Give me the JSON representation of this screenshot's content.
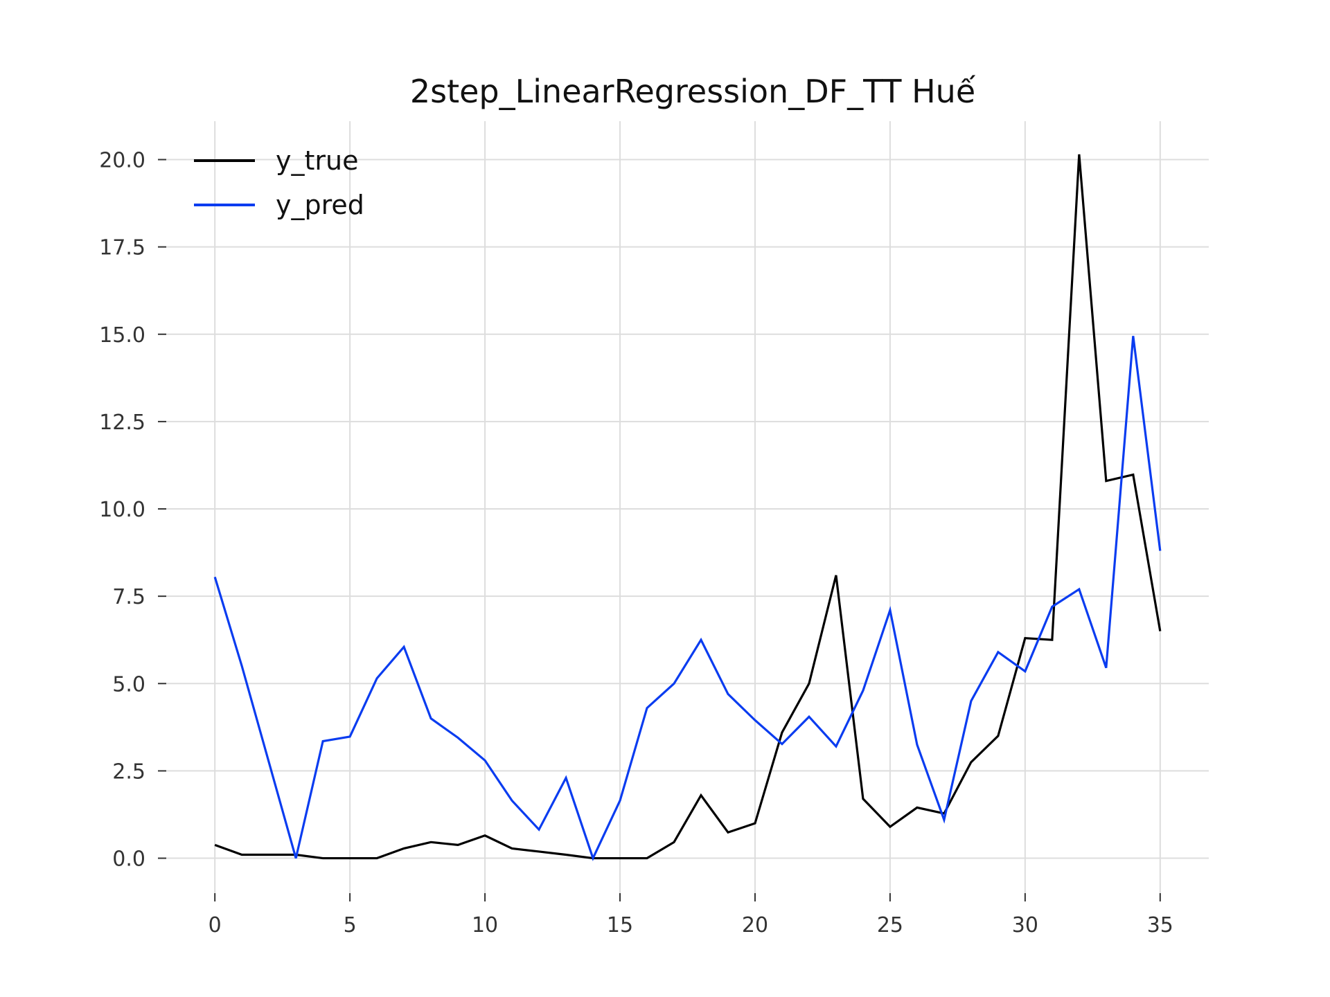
{
  "chart_data": {
    "type": "line",
    "title": "2step_LinearRegression_DF_TT Huế",
    "xlabel": "",
    "ylabel": "",
    "xlim": [
      -1.8,
      36.8
    ],
    "ylim": [
      -1.0,
      21.1
    ],
    "xticks": [
      0,
      5,
      10,
      15,
      20,
      25,
      30,
      35
    ],
    "xtick_labels": [
      "0",
      "5",
      "10",
      "15",
      "20",
      "25",
      "30",
      "35"
    ],
    "yticks": [
      0,
      2.5,
      5,
      7.5,
      10,
      12.5,
      15,
      17.5,
      20
    ],
    "ytick_labels": [
      "0.0",
      "2.5",
      "5.0",
      "7.5",
      "10.0",
      "12.5",
      "15.0",
      "17.5",
      "20.0"
    ],
    "grid": true,
    "legend_position": "top-left",
    "x": [
      0,
      1,
      2,
      3,
      4,
      5,
      6,
      7,
      8,
      9,
      10,
      11,
      12,
      13,
      14,
      15,
      16,
      17,
      18,
      19,
      20,
      21,
      22,
      23,
      24,
      25,
      26,
      27,
      28,
      29,
      30,
      31,
      32,
      33,
      34,
      35
    ],
    "series": [
      {
        "name": "y_true",
        "color": "#000000",
        "values": [
          0.38,
          0.1,
          0.1,
          0.1,
          0.0,
          0.0,
          0.0,
          0.28,
          0.46,
          0.38,
          0.65,
          0.28,
          0.19,
          0.1,
          0.0,
          0.0,
          0.0,
          0.46,
          1.8,
          0.74,
          1.0,
          3.6,
          5.0,
          8.1,
          1.7,
          0.9,
          1.45,
          1.28,
          2.75,
          3.5,
          6.3,
          6.25,
          20.15,
          10.8,
          10.98,
          6.5
        ]
      },
      {
        "name": "y_pred",
        "color": "#0a3cf0",
        "values": [
          8.05,
          5.5,
          2.75,
          0.0,
          3.35,
          3.48,
          5.15,
          6.05,
          4.0,
          3.45,
          2.8,
          1.65,
          0.82,
          2.3,
          0.0,
          1.65,
          4.3,
          5.0,
          6.25,
          4.7,
          3.95,
          3.27,
          4.05,
          3.2,
          4.8,
          7.1,
          3.25,
          1.1,
          4.5,
          5.9,
          5.35,
          7.2,
          7.7,
          5.45,
          14.95,
          8.8
        ]
      }
    ]
  }
}
